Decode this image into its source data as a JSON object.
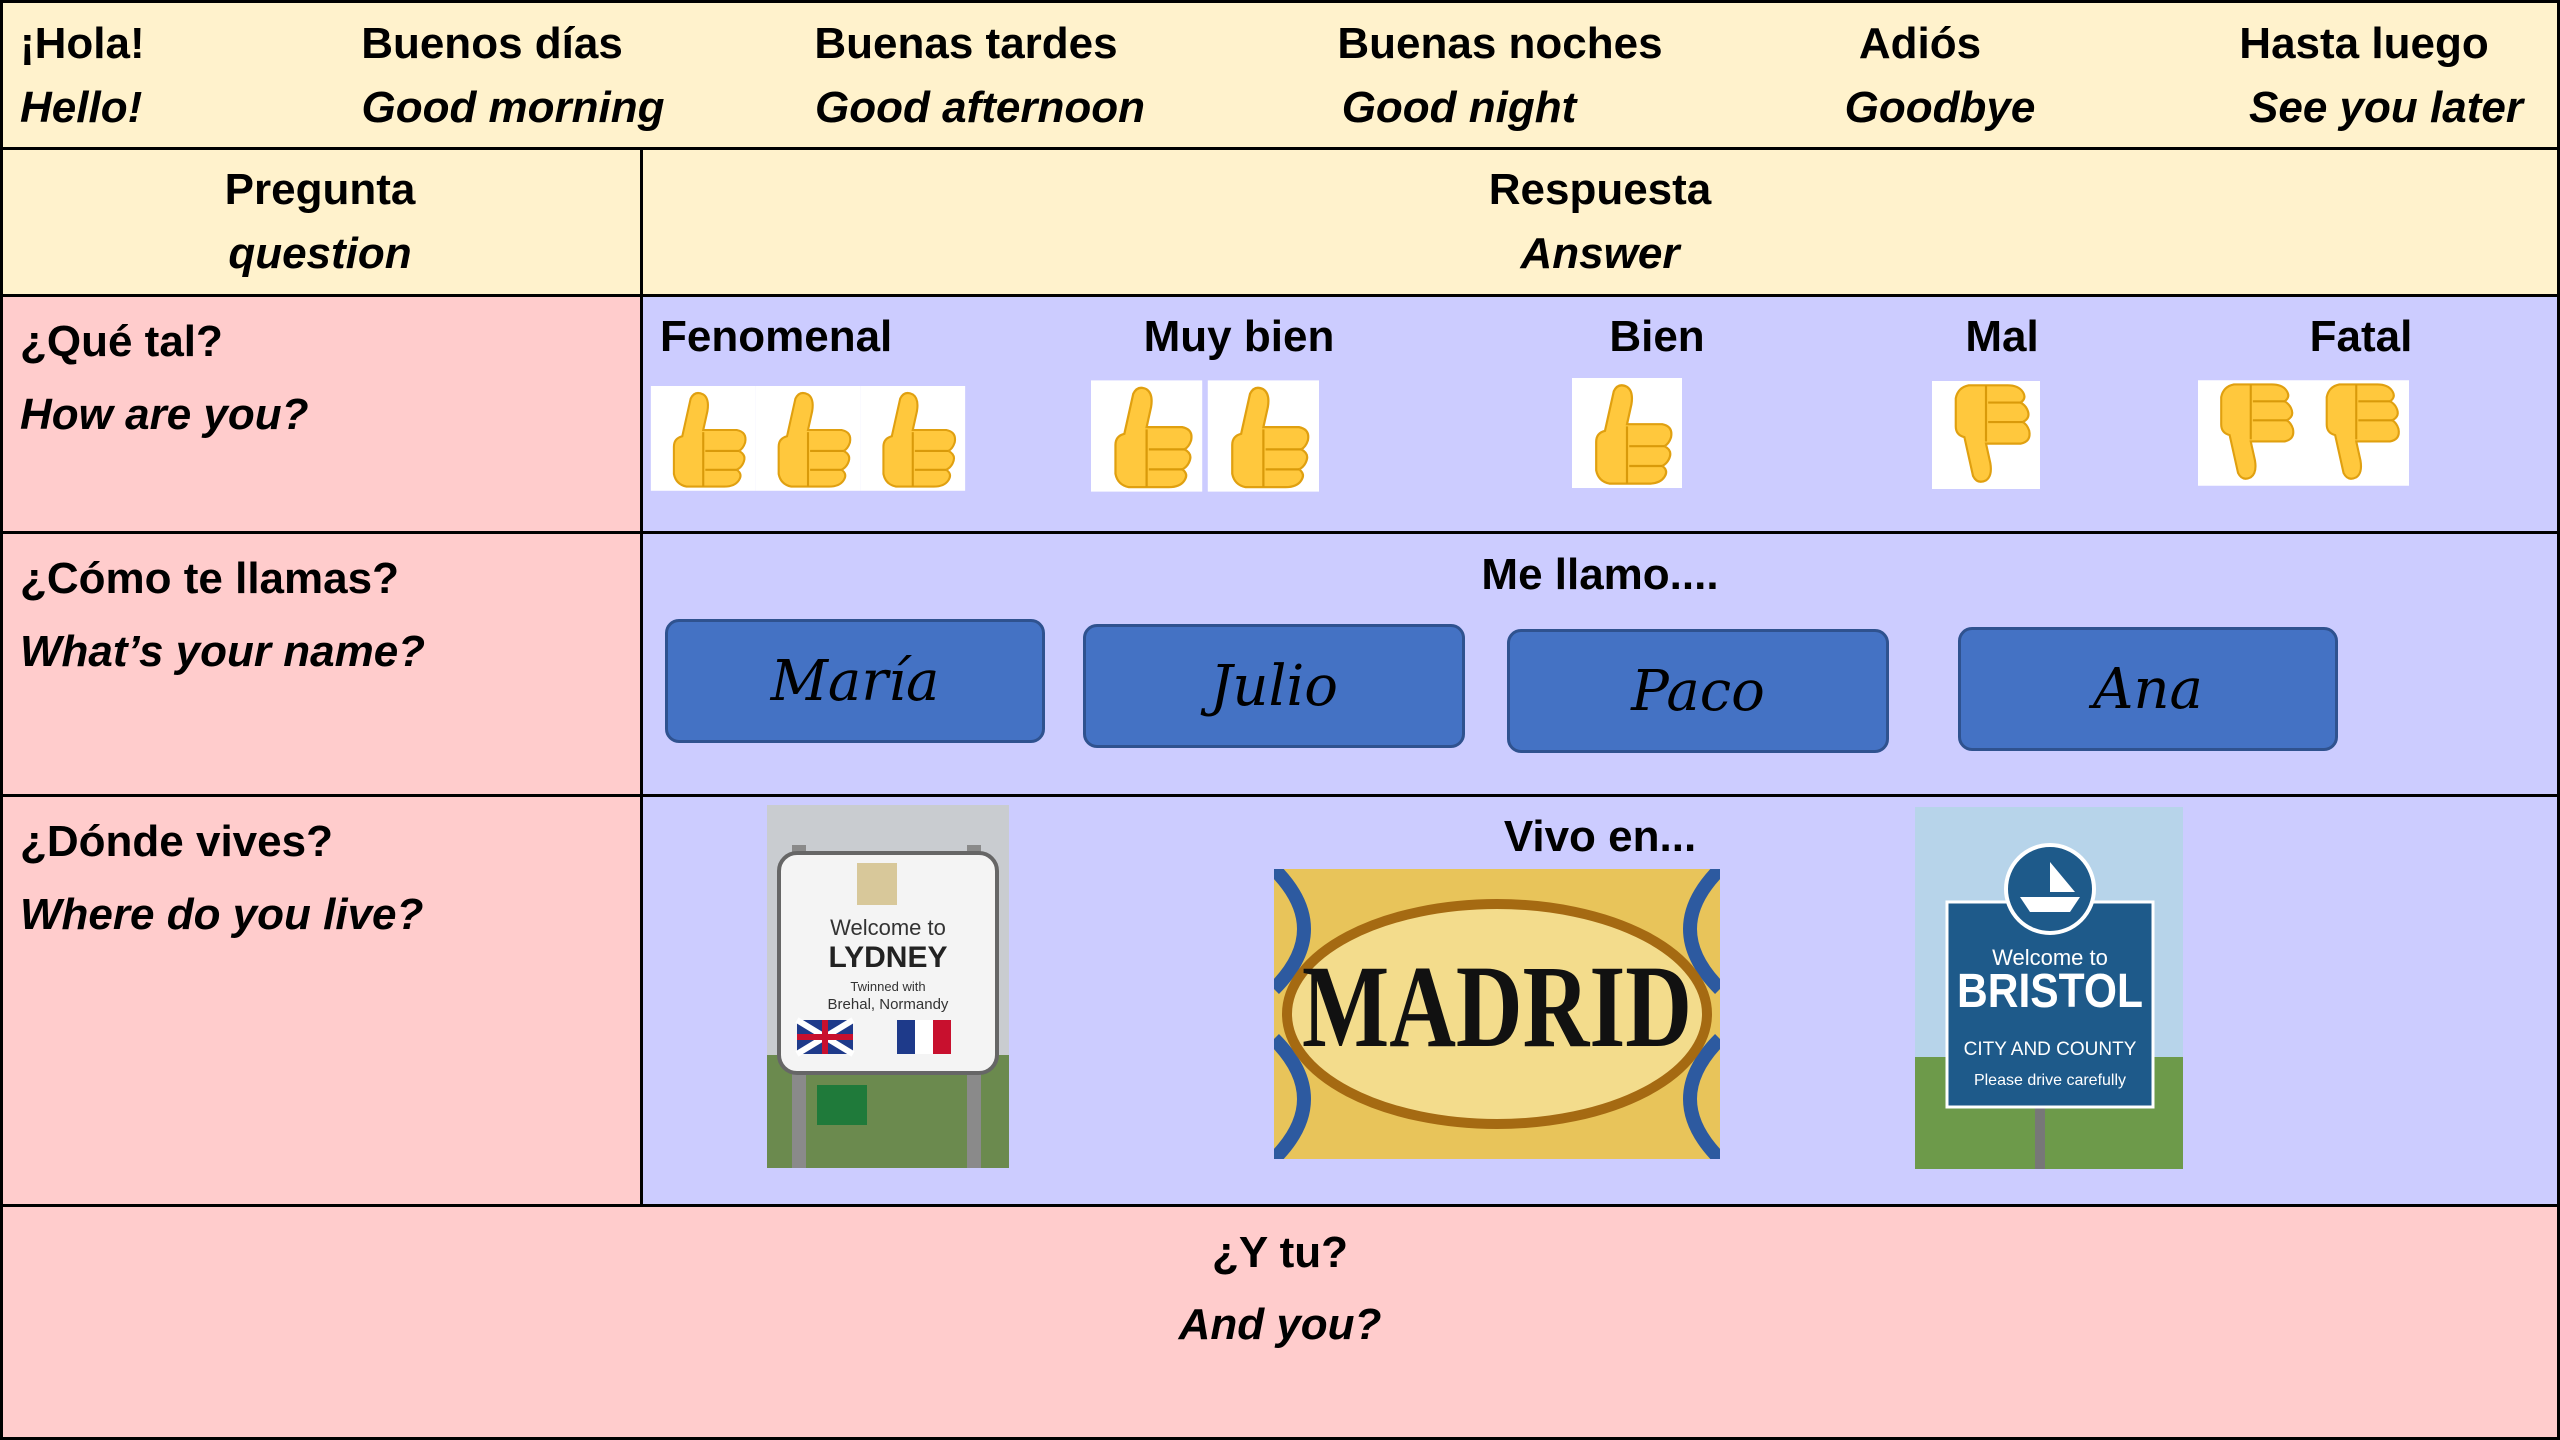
{
  "greetings": [
    {
      "spanish": "¡Hola!",
      "english": "Hello!"
    },
    {
      "spanish": "Buenos días",
      "english": "Good morning"
    },
    {
      "spanish": "Buenas tardes",
      "english": "Good afternoon"
    },
    {
      "spanish": "Buenas noches",
      "english": "Good night"
    },
    {
      "spanish": "Adiós",
      "english": "Goodbye"
    },
    {
      "spanish": "Hasta luego",
      "english": "See you later"
    }
  ],
  "header": {
    "question": {
      "spanish": "Pregunta",
      "english": "question"
    },
    "answer": {
      "spanish": "Respuesta",
      "english": "Answer"
    }
  },
  "rows": [
    {
      "question": {
        "spanish": "¿Qué tal?",
        "english": "How are you?"
      },
      "answers": [
        "Fenomenal",
        "Muy bien",
        "Bien",
        "Mal",
        "Fatal"
      ]
    },
    {
      "question": {
        "spanish": "¿Cómo te llamas?",
        "english": "What’s your name?"
      },
      "prompt": "Me llamo....",
      "names": [
        "María",
        "Julio",
        "Paco",
        "Ana"
      ]
    },
    {
      "question": {
        "spanish": "¿Dónde vives?",
        "english": "Where do you live?"
      },
      "prompt": "Vivo en...",
      "images": [
        {
          "lines": [
            "Welcome to",
            "LYDNEY",
            "Twinned with",
            "Brehal, Normandy"
          ]
        },
        {
          "lines": [
            "MADRID"
          ]
        },
        {
          "lines": [
            "Welcome to",
            "BRISTOL",
            "CITY AND COUNTY",
            "Please drive carefully"
          ]
        }
      ]
    }
  ],
  "footer": {
    "spanish": "¿Y tu?",
    "english": "And you?"
  }
}
